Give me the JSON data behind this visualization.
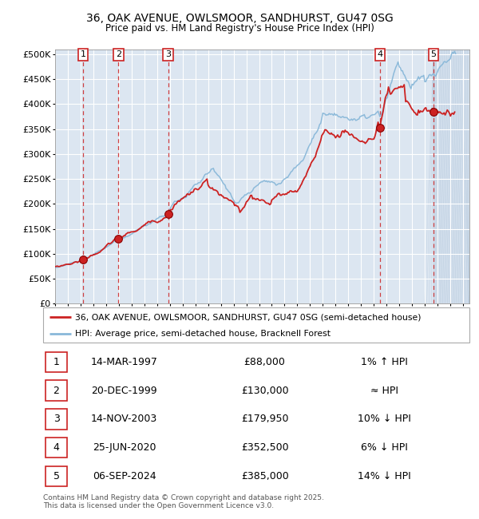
{
  "title": "36, OAK AVENUE, OWLSMOOR, SANDHURST, GU47 0SG",
  "subtitle": "Price paid vs. HM Land Registry's House Price Index (HPI)",
  "ylim": [
    0,
    510000
  ],
  "yticks": [
    0,
    50000,
    100000,
    150000,
    200000,
    250000,
    300000,
    350000,
    400000,
    450000,
    500000
  ],
  "ytick_labels": [
    "£0",
    "£50K",
    "£100K",
    "£150K",
    "£200K",
    "£250K",
    "£300K",
    "£350K",
    "£400K",
    "£450K",
    "£500K"
  ],
  "xlim_start": 1995.0,
  "xlim_end": 2027.5,
  "xticks": [
    1995,
    1996,
    1997,
    1998,
    1999,
    2000,
    2001,
    2002,
    2003,
    2004,
    2005,
    2006,
    2007,
    2008,
    2009,
    2010,
    2011,
    2012,
    2013,
    2014,
    2015,
    2016,
    2017,
    2018,
    2019,
    2020,
    2021,
    2022,
    2023,
    2024,
    2025,
    2026,
    2027
  ],
  "background_color": "#ffffff",
  "plot_bg_color": "#dce6f1",
  "grid_color": "#ffffff",
  "hpi_color": "#89b8d9",
  "price_color": "#cc2222",
  "sale_marker_color": "#cc2222",
  "dashed_vline_color": "#cc2222",
  "sale_points": [
    {
      "year": 1997.19,
      "price": 88000,
      "label": "1"
    },
    {
      "year": 1999.97,
      "price": 130000,
      "label": "2"
    },
    {
      "year": 2003.87,
      "price": 179950,
      "label": "3"
    },
    {
      "year": 2020.48,
      "price": 352500,
      "label": "4"
    },
    {
      "year": 2024.68,
      "price": 385000,
      "label": "5"
    }
  ],
  "legend_price_label": "36, OAK AVENUE, OWLSMOOR, SANDHURST, GU47 0SG (semi-detached house)",
  "legend_hpi_label": "HPI: Average price, semi-detached house, Bracknell Forest",
  "table_data": [
    {
      "num": "1",
      "date": "14-MAR-1997",
      "price": "£88,000",
      "note": "1% ↑ HPI"
    },
    {
      "num": "2",
      "date": "20-DEC-1999",
      "price": "£130,000",
      "note": "≈ HPI"
    },
    {
      "num": "3",
      "date": "14-NOV-2003",
      "price": "£179,950",
      "note": "10% ↓ HPI"
    },
    {
      "num": "4",
      "date": "25-JUN-2020",
      "price": "£352,500",
      "note": "6% ↓ HPI"
    },
    {
      "num": "5",
      "date": "06-SEP-2024",
      "price": "£385,000",
      "note": "14% ↓ HPI"
    }
  ],
  "footer": "Contains HM Land Registry data © Crown copyright and database right 2025.\nThis data is licensed under the Open Government Licence v3.0."
}
